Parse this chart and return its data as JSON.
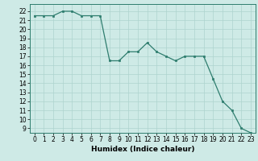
{
  "x": [
    0,
    1,
    2,
    3,
    4,
    5,
    6,
    7,
    8,
    9,
    10,
    11,
    12,
    13,
    14,
    15,
    16,
    17,
    18,
    19,
    20,
    21,
    22,
    23
  ],
  "y": [
    21.5,
    21.5,
    21.5,
    22.0,
    22.0,
    21.5,
    21.5,
    21.5,
    16.5,
    16.5,
    17.5,
    17.5,
    18.5,
    17.5,
    17.0,
    16.5,
    17.0,
    17.0,
    17.0,
    14.5,
    12.0,
    11.0,
    9.0,
    8.5
  ],
  "xlabel": "Humidex (Indice chaleur)",
  "xlim": [
    -0.5,
    23.5
  ],
  "ylim": [
    8.5,
    22.8
  ],
  "yticks": [
    9,
    10,
    11,
    12,
    13,
    14,
    15,
    16,
    17,
    18,
    19,
    20,
    21,
    22
  ],
  "xticks": [
    0,
    1,
    2,
    3,
    4,
    5,
    6,
    7,
    8,
    9,
    10,
    11,
    12,
    13,
    14,
    15,
    16,
    17,
    18,
    19,
    20,
    21,
    22,
    23
  ],
  "line_color": "#2e7d6e",
  "marker_color": "#2e7d6e",
  "bg_color": "#ceeae6",
  "grid_color": "#aed4ce",
  "bottom_bar_color": "#4a8a80",
  "axis_label_fontsize": 6.5,
  "tick_fontsize": 5.5
}
